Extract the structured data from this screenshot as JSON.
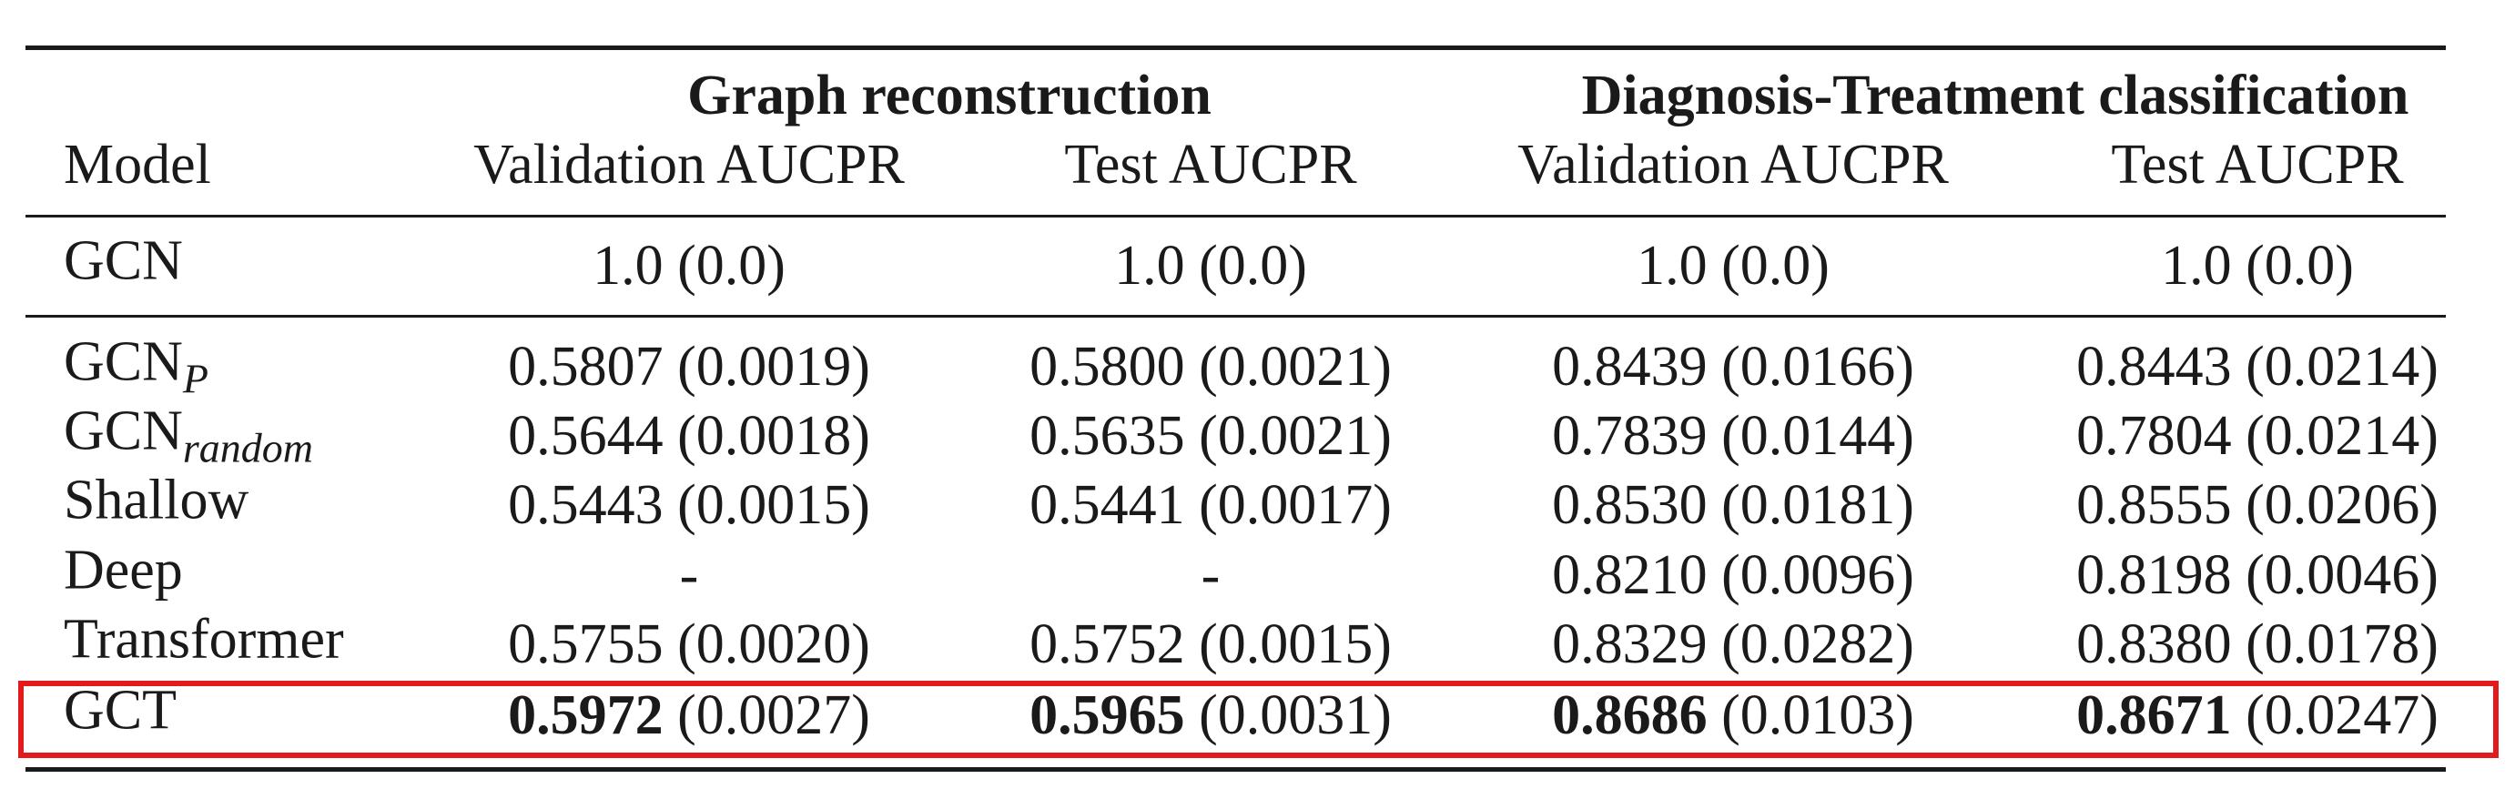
{
  "table": {
    "groups": [
      {
        "label": "Graph reconstruction"
      },
      {
        "label": "Diagnosis-Treatment classification"
      }
    ],
    "columns": [
      "Model",
      "Validation AUCPR",
      "Test AUCPR",
      "Validation AUCPR",
      "Test AUCPR"
    ],
    "rows": [
      {
        "model": "GCN",
        "subscript": "",
        "cells": [
          {
            "value": "",
            "std": "1.0 (0.0)"
          },
          {
            "value": "",
            "std": "1.0 (0.0)"
          },
          {
            "value": "",
            "std": "1.0 (0.0)"
          },
          {
            "value": "",
            "std": "1.0 (0.0)"
          }
        ]
      },
      {
        "model": "GCN",
        "subscript": "P",
        "cells": [
          {
            "value": "",
            "std": "0.5807 (0.0019)"
          },
          {
            "value": "",
            "std": "0.5800 (0.0021)"
          },
          {
            "value": "",
            "std": "0.8439 (0.0166)"
          },
          {
            "value": "",
            "std": "0.8443 (0.0214)"
          }
        ]
      },
      {
        "model": "GCN",
        "subscript": "random",
        "cells": [
          {
            "value": "",
            "std": "0.5644 (0.0018)"
          },
          {
            "value": "",
            "std": "0.5635 (0.0021)"
          },
          {
            "value": "",
            "std": "0.7839 (0.0144)"
          },
          {
            "value": "",
            "std": "0.7804 (0.0214)"
          }
        ]
      },
      {
        "model": "Shallow",
        "subscript": "",
        "cells": [
          {
            "value": "",
            "std": "0.5443 (0.0015)"
          },
          {
            "value": "",
            "std": "0.5441 (0.0017)"
          },
          {
            "value": "",
            "std": "0.8530 (0.0181)"
          },
          {
            "value": "",
            "std": "0.8555 (0.0206)"
          }
        ]
      },
      {
        "model": "Deep",
        "subscript": "",
        "cells": [
          {
            "value": "",
            "std": "-"
          },
          {
            "value": "",
            "std": "-"
          },
          {
            "value": "",
            "std": "0.8210 (0.0096)"
          },
          {
            "value": "",
            "std": "0.8198 (0.0046)"
          }
        ]
      },
      {
        "model": "Transformer",
        "subscript": "",
        "cells": [
          {
            "value": "",
            "std": "0.5755 (0.0020)"
          },
          {
            "value": "",
            "std": "0.5752 (0.0015)"
          },
          {
            "value": "",
            "std": "0.8329 (0.0282)"
          },
          {
            "value": "",
            "std": "0.8380 (0.0178)"
          }
        ]
      },
      {
        "model": "GCT",
        "subscript": "",
        "cells": [
          {
            "value": "0.5972",
            "std": " (0.0027)"
          },
          {
            "value": "0.5965",
            "std": " (0.0031)"
          },
          {
            "value": "0.8686",
            "std": " (0.0103)"
          },
          {
            "value": "0.8671",
            "std": " (0.0247)"
          }
        ]
      }
    ]
  },
  "highlight_color": "#e31a1c"
}
